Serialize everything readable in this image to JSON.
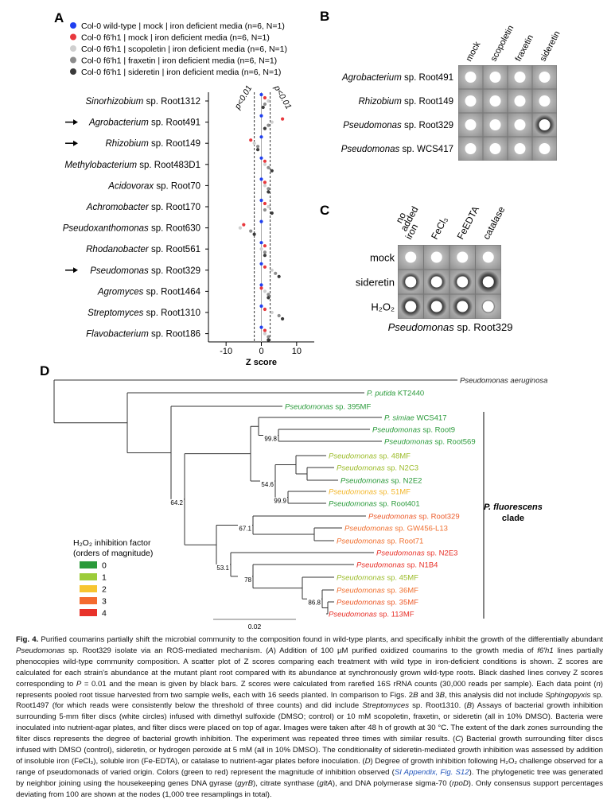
{
  "panel_a": {
    "label": "A",
    "legend": [
      {
        "text": "Col-0 wild-type | mock | iron deficient media (n=6, N=1)",
        "color": "#1f3ff0"
      },
      {
        "text": "Col-0 f6'h1 | mock | iron deficient media (n=6, N=1)",
        "color": "#e8383d"
      },
      {
        "text": "Col-0 f6'h1 | scopoletin | iron deficient media (n=6, N=1)",
        "color": "#cfcfcf"
      },
      {
        "text": "Col-0 f6'h1 | fraxetin | iron deficient media (n=6, N=1)",
        "color": "#8c8c8c"
      },
      {
        "text": "Col-0 f6'h1 | sideretin | iron deficient media (n=6, N=1)",
        "color": "#3a3a3a"
      }
    ],
    "strains": [
      {
        "genus": "Sinorhizobium",
        "rest": " sp. Root1312",
        "arrow": false,
        "values": [
          0,
          1,
          2,
          1,
          0.5
        ]
      },
      {
        "genus": "Agrobacterium",
        "rest": " sp. Root491",
        "arrow": true,
        "values": [
          0,
          6,
          3,
          2,
          1
        ]
      },
      {
        "genus": "Rhizobium",
        "rest": " sp. Root149",
        "arrow": true,
        "values": [
          0,
          -3,
          -2,
          -1,
          -1
        ]
      },
      {
        "genus": "Methylobacterium",
        "rest": " sp. Root483D1",
        "arrow": false,
        "values": [
          0,
          1,
          1,
          2,
          3
        ]
      },
      {
        "genus": "Acidovorax",
        "rest": " sp. Root70",
        "arrow": false,
        "values": [
          0,
          1,
          1,
          2,
          2
        ]
      },
      {
        "genus": "Achromobacter",
        "rest": " sp. Root170",
        "arrow": false,
        "values": [
          0,
          1,
          2,
          1,
          3
        ]
      },
      {
        "genus": "Pseudoxanthomonas",
        "rest": " sp. Root630",
        "arrow": false,
        "values": [
          0,
          -5,
          -6,
          -3,
          -2
        ]
      },
      {
        "genus": "Rhodanobacter",
        "rest": " sp. Root561",
        "arrow": false,
        "values": [
          0,
          1,
          0,
          1,
          1
        ]
      },
      {
        "genus": "Pseudomonas",
        "rest": " sp. Root329",
        "arrow": true,
        "values": [
          0,
          1,
          3,
          4,
          5
        ]
      },
      {
        "genus": "Agromyces",
        "rest": " sp. Root1464",
        "arrow": false,
        "values": [
          0,
          0,
          1,
          2,
          2
        ]
      },
      {
        "genus": "Streptomyces",
        "rest": " sp. Root1310",
        "arrow": false,
        "values": [
          0,
          1,
          3,
          5,
          6
        ]
      },
      {
        "genus": "Flavobacterium",
        "rest": " sp. Root186",
        "arrow": false,
        "values": [
          0,
          1,
          1,
          2,
          2
        ]
      }
    ],
    "thresholds": [
      -2,
      2.5
    ],
    "threshold_labels": [
      "p<0.01",
      "p<0.01"
    ],
    "xlim": [
      -15,
      15
    ],
    "xticks": [
      -10,
      0,
      10
    ],
    "xlabel": "Z score"
  },
  "panel_b": {
    "label": "B",
    "columns": [
      "mock",
      "scopoletin",
      "fraxetin",
      "sideretin"
    ],
    "rows": [
      {
        "genus": "Agrobacterium",
        "rest": " sp. Root491"
      },
      {
        "genus": "Rhizobium",
        "rest": " sp. Root149"
      },
      {
        "genus": "Pseudomonas",
        "rest": " sp. Root329"
      },
      {
        "genus": "Pseudomonas",
        "rest": " sp. WCS417"
      }
    ]
  },
  "panel_c": {
    "label": "C",
    "columns": [
      [
        "no",
        "added",
        "iron"
      ],
      [
        "FeCl₃"
      ],
      [
        "FeEDTA"
      ],
      [
        "catalase"
      ]
    ],
    "rows": [
      "mock",
      "sideretin",
      "H₂O₂"
    ],
    "caption": {
      "genus": "Pseudomonas",
      "rest": " sp. Root329"
    }
  },
  "panel_d": {
    "label": "D",
    "leaves": [
      {
        "genus": "Pseudomonas aeruginosa",
        "rest": "",
        "color": "#222222"
      },
      {
        "genus": "P. putida",
        "rest": " KT2440",
        "color": "#2a9a3a"
      },
      {
        "genus": "Pseudomonas",
        "rest": " sp. 395MF",
        "color": "#2a9a3a"
      },
      {
        "genus": "P. simiae",
        "rest": " WCS417",
        "color": "#2a9a3a"
      },
      {
        "genus": "Pseudomonas",
        "rest": " sp. Root9",
        "color": "#2a9a3a"
      },
      {
        "genus": "Pseudomonas",
        "rest": " sp. Root569",
        "color": "#2a9a3a"
      },
      {
        "genus": "Pseudomonas",
        "rest": " sp. 48MF",
        "color": "#9cbc2a"
      },
      {
        "genus": "Pseudomonas",
        "rest": " sp. N2C3",
        "color": "#9cbc2a"
      },
      {
        "genus": "Pseudomonas",
        "rest": " sp. N2E2",
        "color": "#2a9a3a"
      },
      {
        "genus": "Pseudomonas",
        "rest": " sp. 51MF",
        "color": "#f2b62a"
      },
      {
        "genus": "Pseudomonas",
        "rest": " sp. Root401",
        "color": "#2a9a3a"
      },
      {
        "genus": "Pseudomonas",
        "rest": " sp. Root329",
        "color": "#ec5a2a"
      },
      {
        "genus": "Pseudomonas",
        "rest": " sp. GW456-L13",
        "color": "#f07030"
      },
      {
        "genus": "Pseudomonas",
        "rest": " sp. Root71",
        "color": "#f07030"
      },
      {
        "genus": "Pseudomonas",
        "rest": " sp. N2E3",
        "color": "#e8322a"
      },
      {
        "genus": "Pseudomonas",
        "rest": " sp. N1B4",
        "color": "#e8322a"
      },
      {
        "genus": "Pseudomonas",
        "rest": " sp. 45MF",
        "color": "#9cbc2a"
      },
      {
        "genus": "Pseudomonas",
        "rest": " sp. 36MF",
        "color": "#f07030"
      },
      {
        "genus": "Pseudomonas",
        "rest": " sp. 35MF",
        "color": "#ec5a2a"
      },
      {
        "genus": "Pseudomonas",
        "rest": " sp. 113MF",
        "color": "#e8322a"
      }
    ],
    "supports": [
      99.8,
      54.6,
      99.9,
      64.2,
      67.1,
      53.1,
      78,
      86.8
    ],
    "scale_label": "0.02",
    "clade": {
      "name": "P. fluorescens",
      "word": "clade"
    },
    "legend": {
      "title": [
        "H₂O₂ inhibition factor",
        "(orders of magnitude)"
      ],
      "items": [
        {
          "label": "0",
          "color": "#2a9a3a"
        },
        {
          "label": "1",
          "color": "#9ccc3a"
        },
        {
          "label": "2",
          "color": "#f7c530"
        },
        {
          "label": "3",
          "color": "#f46b30"
        },
        {
          "label": "4",
          "color": "#e8322a"
        }
      ]
    }
  },
  "caption": [
    {
      "text": "Fig. 4.",
      "style": "b"
    },
    {
      "text": "  Purified coumarins partially shift the microbial community to the composition found in wild-type plants, and specifically inhibit the growth of the differentially abundant ",
      "style": ""
    },
    {
      "text": "Pseudomonas",
      "style": "i"
    },
    {
      "text": " sp. Root329 isolate via an ROS-mediated mechanism. (",
      "style": ""
    },
    {
      "text": "A",
      "style": "i"
    },
    {
      "text": ") Addition of 100 µM purified oxidized coumarins to the growth media of ",
      "style": ""
    },
    {
      "text": "f6′h1",
      "style": "i"
    },
    {
      "text": " lines partially phenocopies wild-type community composition. A scatter plot of Z scores comparing each treatment with wild type in iron-deficient conditions is shown. Z scores are calculated for each strain's abundance at the mutant plant root compared with its abundance at synchronously grown wild-type roots. Black dashed lines convey Z scores corresponding to ",
      "style": ""
    },
    {
      "text": "P",
      "style": "i"
    },
    {
      "text": " = 0.01 and the mean is given by black bars. Z scores were calculated from rarefied 16S rRNA counts (30,000 reads per sample). Each data point (",
      "style": ""
    },
    {
      "text": "n",
      "style": "i"
    },
    {
      "text": ") represents pooled root tissue harvested from two sample wells, each with 16 seeds planted. In comparison to Figs. 2",
      "style": ""
    },
    {
      "text": "B",
      "style": "i"
    },
    {
      "text": " and 3",
      "style": ""
    },
    {
      "text": "B",
      "style": "i"
    },
    {
      "text": ", this analysis did not include ",
      "style": ""
    },
    {
      "text": "Sphingopyxis",
      "style": "i"
    },
    {
      "text": " sp. Root1497 (for which reads were consistently below the threshold of three counts) and did include ",
      "style": ""
    },
    {
      "text": "Streptomyces",
      "style": "i"
    },
    {
      "text": " sp. Root1310. (",
      "style": ""
    },
    {
      "text": "B",
      "style": "i"
    },
    {
      "text": ") Assays of bacterial growth inhibition surrounding 5-mm filter discs (white circles) infused with dimethyl sulfoxide (DMSO; control) or 10 mM scopoletin, fraxetin, or sideretin (all in 10% DMSO). Bacteria were inoculated into nutrient-agar plates, and filter discs were placed on top of agar. Images were taken after 48 h of growth at 30 °C. The extent of the dark zones surrounding the filter discs represents the degree of bacterial growth inhibition. The experiment was repeated three times with similar results. (",
      "style": ""
    },
    {
      "text": "C",
      "style": "i"
    },
    {
      "text": ") Bacterial growth surrounding filter discs infused with DMSO (control), sideretin, or hydrogen peroxide at 5 mM (all in 10% DMSO). The conditionality of sideretin-mediated growth inhibition was assessed by addition of insoluble iron (FeCl₃), soluble iron (Fe-EDTA), or catalase to nutrient-agar plates before inoculation. (",
      "style": ""
    },
    {
      "text": "D",
      "style": "i"
    },
    {
      "text": ") Degree of growth inhibition following H₂O₂ challenge observed for a range of pseudomonads of varied origin. Colors (green to red) represent the magnitude of inhibition observed (",
      "style": ""
    },
    {
      "text": "SI Appendix, Fig. S12",
      "style": "link"
    },
    {
      "text": "). The phylogenetic tree was generated by neighbor joining using the housekeeping genes DNA gyrase (",
      "style": ""
    },
    {
      "text": "gyrB",
      "style": "i"
    },
    {
      "text": "), citrate synthase (",
      "style": ""
    },
    {
      "text": "gltA",
      "style": "i"
    },
    {
      "text": "), and DNA polymerase sigma-70 (",
      "style": ""
    },
    {
      "text": "rpoD",
      "style": "i"
    },
    {
      "text": "). Only consensus support percentages deviating from 100 are shown at the nodes (1,000 tree resamplings in total).",
      "style": ""
    }
  ]
}
